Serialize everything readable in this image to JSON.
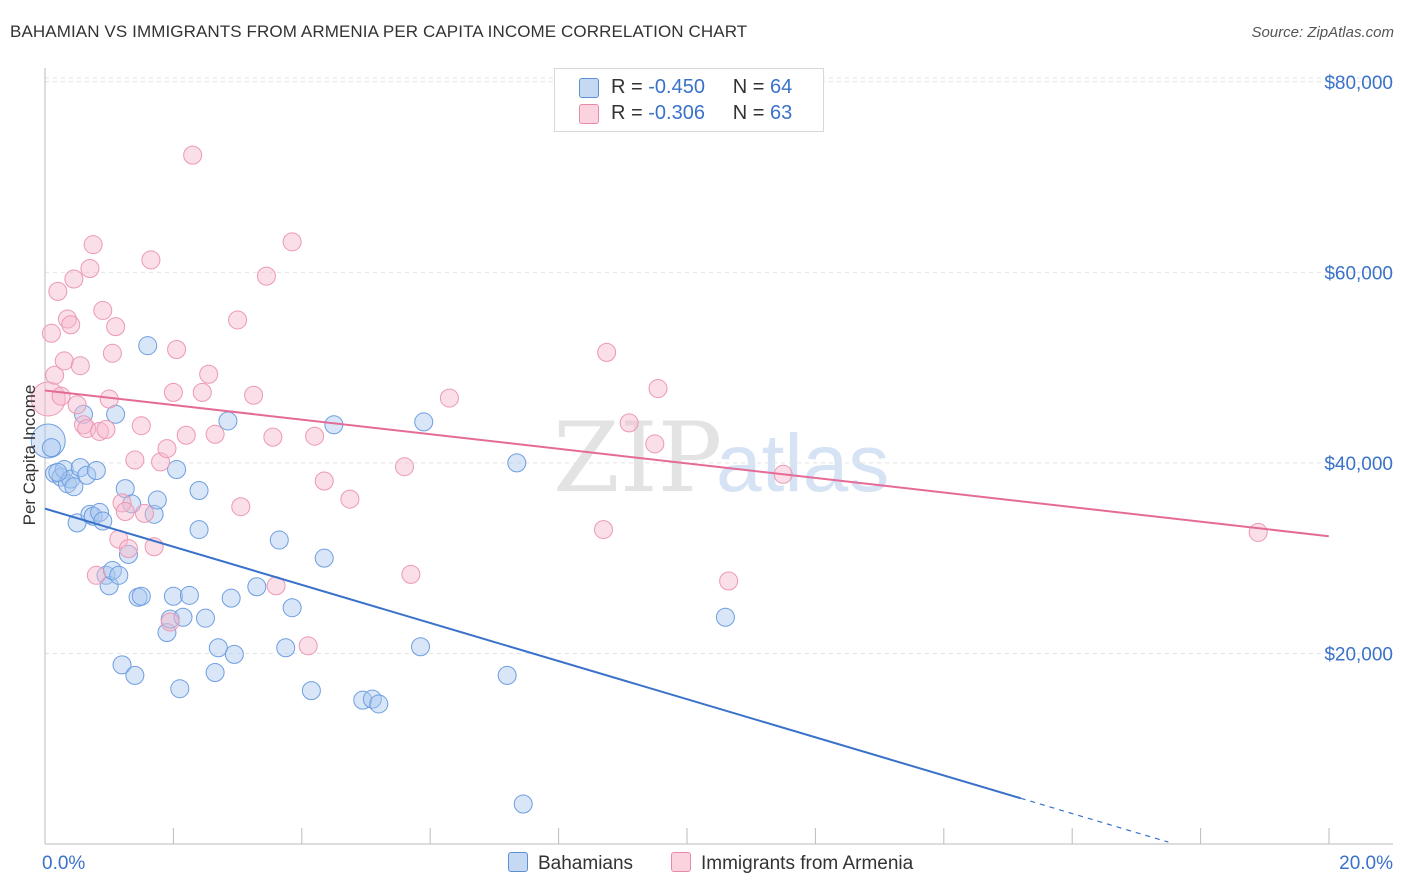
{
  "header": {
    "title": "BAHAMIAN VS IMMIGRANTS FROM ARMENIA PER CAPITA INCOME CORRELATION CHART",
    "source": "Source: ZipAtlas.com"
  },
  "watermark": {
    "zip": "ZIP",
    "atlas": "atlas"
  },
  "legend_top": [
    {
      "r_label": "R =",
      "r_value": "-0.450",
      "n_label": "N =",
      "n_value": "64",
      "color": "#a9c8f0"
    },
    {
      "r_label": "R =",
      "r_value": "-0.306",
      "n_label": "N =",
      "n_value": "63",
      "color": "#f6b8cb"
    }
  ],
  "legend_bottom": [
    {
      "label": "Bahamians",
      "color": "#a9c8f0"
    },
    {
      "label": "Immigrants from Armenia",
      "color": "#f6b8cb"
    }
  ],
  "chart_data": {
    "type": "scatter",
    "title": "BAHAMIAN VS IMMIGRANTS FROM ARMENIA PER CAPITA INCOME CORRELATION CHART",
    "ylabel": "Per Capita Income",
    "xlim": [
      0,
      21
    ],
    "ylim": [
      0,
      80000
    ],
    "x_tick_labels": [
      "0.0%",
      "20.0%"
    ],
    "y_ticks": [
      20000,
      40000,
      60000,
      80000
    ],
    "y_tick_labels": [
      "$20,000",
      "$40,000",
      "$60,000",
      "$80,000"
    ],
    "grid": "horizontal dashed",
    "series": [
      {
        "name": "Bahamians",
        "color": "#3a72c9",
        "fill": "#a9c8f0",
        "trend": {
          "x0": 0,
          "y0": 35200,
          "x1": 15.2,
          "y1": 4800,
          "dash_to_x": 17.5
        },
        "points": [
          [
            0.05,
            42300
          ],
          [
            0.1,
            41600
          ],
          [
            0.15,
            38900
          ],
          [
            0.25,
            38500
          ],
          [
            0.3,
            39300
          ],
          [
            0.35,
            37800
          ],
          [
            0.4,
            38300
          ],
          [
            0.45,
            37500
          ],
          [
            0.5,
            33700
          ],
          [
            0.55,
            39500
          ],
          [
            0.6,
            45100
          ],
          [
            0.65,
            38700
          ],
          [
            0.7,
            34600
          ],
          [
            0.75,
            34400
          ],
          [
            0.8,
            39200
          ],
          [
            0.85,
            34800
          ],
          [
            0.9,
            33900
          ],
          [
            0.95,
            28200
          ],
          [
            1.0,
            27100
          ],
          [
            1.05,
            28700
          ],
          [
            1.1,
            45100
          ],
          [
            1.15,
            28200
          ],
          [
            1.2,
            18800
          ],
          [
            1.25,
            37300
          ],
          [
            1.3,
            30400
          ],
          [
            1.35,
            35700
          ],
          [
            1.4,
            17700
          ],
          [
            1.45,
            25900
          ],
          [
            1.5,
            26000
          ],
          [
            1.6,
            52300
          ],
          [
            1.7,
            34600
          ],
          [
            1.75,
            36100
          ],
          [
            1.9,
            22200
          ],
          [
            1.95,
            23600
          ],
          [
            2.0,
            26000
          ],
          [
            2.05,
            39300
          ],
          [
            2.1,
            16300
          ],
          [
            2.15,
            23800
          ],
          [
            2.25,
            26100
          ],
          [
            2.4,
            37100
          ],
          [
            2.4,
            33000
          ],
          [
            2.5,
            23700
          ],
          [
            2.65,
            18000
          ],
          [
            2.7,
            20600
          ],
          [
            2.85,
            44400
          ],
          [
            2.9,
            25800
          ],
          [
            2.95,
            19900
          ],
          [
            3.3,
            27000
          ],
          [
            3.65,
            31900
          ],
          [
            3.75,
            20600
          ],
          [
            3.85,
            24800
          ],
          [
            4.15,
            16100
          ],
          [
            4.35,
            30000
          ],
          [
            4.5,
            44000
          ],
          [
            4.95,
            15100
          ],
          [
            5.1,
            15200
          ],
          [
            5.2,
            14700
          ],
          [
            5.85,
            20700
          ],
          [
            5.9,
            44300
          ],
          [
            7.2,
            17700
          ],
          [
            7.35,
            40000
          ],
          [
            7.45,
            4200
          ],
          [
            10.6,
            23800
          ],
          [
            0.2,
            39000
          ]
        ]
      },
      {
        "name": "Immigrants from Armenia",
        "color": "#e56b97",
        "fill": "#f6b8cb",
        "trend": {
          "x0": 0,
          "y0": 47600,
          "x1": 20,
          "y1": 32300
        },
        "points": [
          [
            0.05,
            46700
          ],
          [
            0.1,
            53600
          ],
          [
            0.15,
            49200
          ],
          [
            0.2,
            58000
          ],
          [
            0.25,
            47000
          ],
          [
            0.3,
            50700
          ],
          [
            0.35,
            55100
          ],
          [
            0.4,
            54500
          ],
          [
            0.45,
            59300
          ],
          [
            0.5,
            46100
          ],
          [
            0.55,
            50200
          ],
          [
            0.6,
            44000
          ],
          [
            0.65,
            43600
          ],
          [
            0.7,
            60400
          ],
          [
            0.75,
            62900
          ],
          [
            0.8,
            28200
          ],
          [
            0.85,
            43300
          ],
          [
            0.9,
            56000
          ],
          [
            0.95,
            43500
          ],
          [
            1.0,
            46700
          ],
          [
            1.05,
            51500
          ],
          [
            1.1,
            54300
          ],
          [
            1.15,
            32000
          ],
          [
            1.2,
            35800
          ],
          [
            1.25,
            34900
          ],
          [
            1.3,
            31000
          ],
          [
            1.4,
            40300
          ],
          [
            1.5,
            43900
          ],
          [
            1.55,
            34700
          ],
          [
            1.65,
            61300
          ],
          [
            1.7,
            31200
          ],
          [
            1.8,
            40100
          ],
          [
            1.9,
            41500
          ],
          [
            1.95,
            23300
          ],
          [
            2.0,
            47400
          ],
          [
            2.05,
            51900
          ],
          [
            2.2,
            42900
          ],
          [
            2.3,
            72300
          ],
          [
            2.45,
            47400
          ],
          [
            2.55,
            49300
          ],
          [
            2.65,
            43000
          ],
          [
            3.0,
            55000
          ],
          [
            3.05,
            35400
          ],
          [
            3.25,
            47100
          ],
          [
            3.45,
            59600
          ],
          [
            3.55,
            42700
          ],
          [
            3.6,
            27100
          ],
          [
            3.85,
            63200
          ],
          [
            4.1,
            20800
          ],
          [
            4.2,
            42800
          ],
          [
            4.35,
            38100
          ],
          [
            4.75,
            36200
          ],
          [
            5.6,
            39600
          ],
          [
            5.7,
            28300
          ],
          [
            6.3,
            46800
          ],
          [
            8.7,
            33000
          ],
          [
            8.75,
            51600
          ],
          [
            9.1,
            44200
          ],
          [
            9.5,
            42000
          ],
          [
            9.55,
            47800
          ],
          [
            10.65,
            27600
          ],
          [
            11.5,
            38800
          ],
          [
            18.9,
            32700
          ]
        ]
      }
    ]
  }
}
